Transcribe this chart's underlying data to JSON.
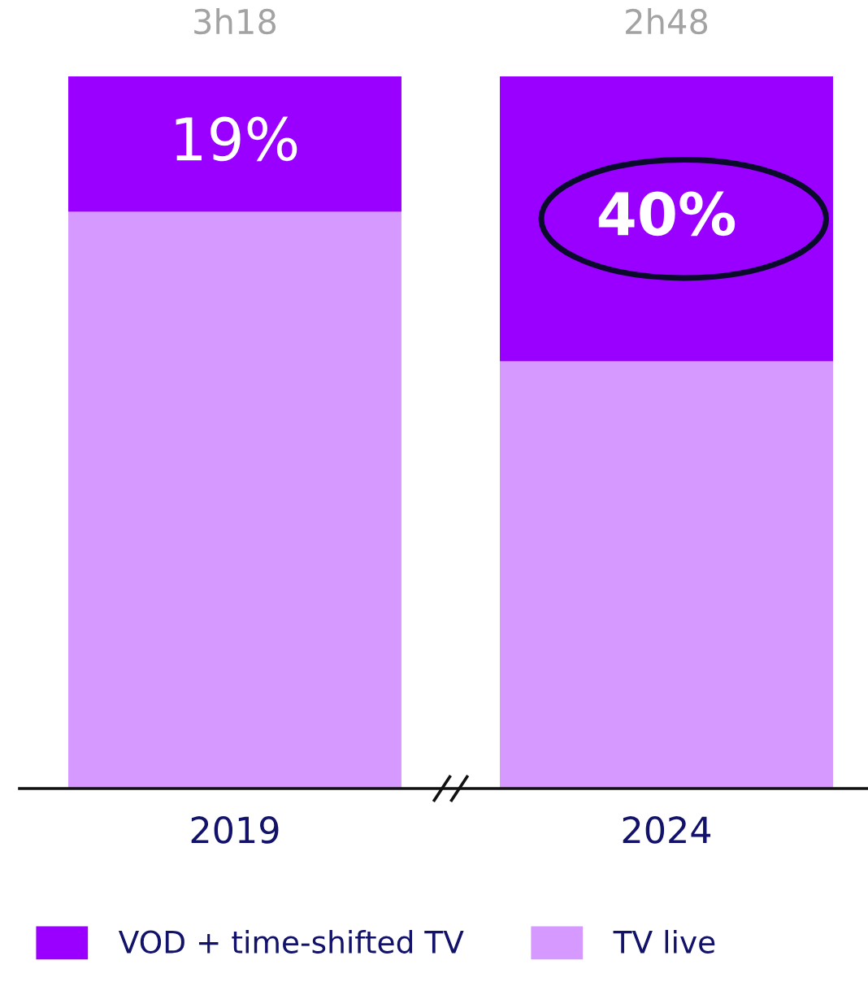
{
  "chart_data": {
    "type": "bar",
    "stacked": true,
    "categories": [
      "2019",
      "2024"
    ],
    "series": [
      {
        "name": "TV live",
        "color": "#d699ff",
        "values": [
          81,
          60
        ]
      },
      {
        "name": "VOD + time-shifted TV",
        "color": "#9900ff",
        "values": [
          19,
          40
        ],
        "value_labels": [
          "19%",
          "40%"
        ]
      }
    ],
    "totals": [
      "3h18",
      "2h48"
    ],
    "legend": "bottom",
    "grid": false
  }
}
